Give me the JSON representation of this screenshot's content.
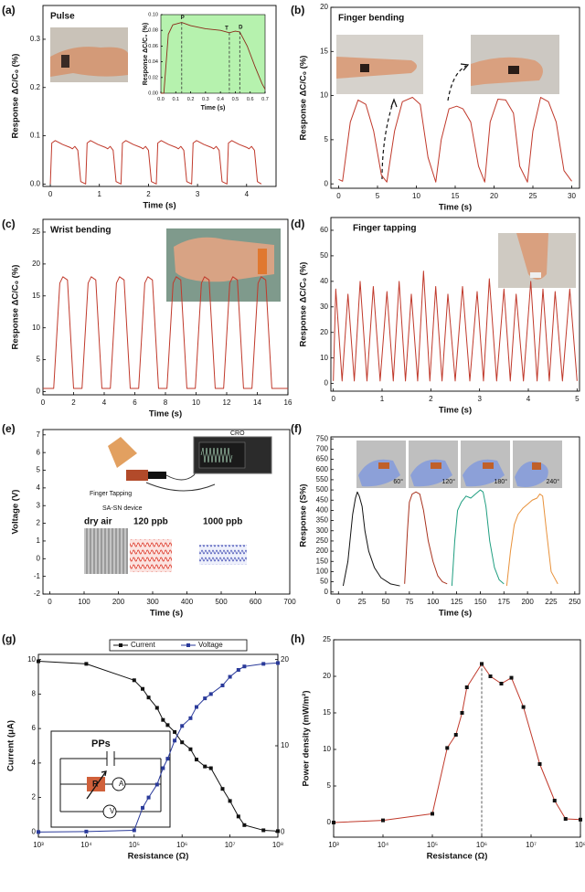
{
  "chart_data": [
    {
      "type": "line",
      "panel_label": "(a)",
      "title": "Pulse",
      "xlabel": "Time (s)",
      "ylabel": "Response ΔC/C₀ (%)",
      "xlim": [
        -0.15,
        4.6
      ],
      "ylim": [
        -0.005,
        0.37
      ],
      "xticks": [
        0,
        1,
        2,
        3,
        4
      ],
      "yticks": [
        {
          "value": 0,
          "label": "0.0"
        },
        0.1,
        0.2,
        0.3
      ],
      "series": [
        {
          "color": "#c0392b",
          "x": [
            0,
            0.03,
            0.1,
            0.25,
            0.4,
            0.45,
            0.5,
            0.56,
            0.62,
            0.72,
            0.75,
            0.82,
            0.97,
            1.12,
            1.17,
            1.22,
            1.28,
            1.34,
            1.44,
            1.47,
            1.54,
            1.69,
            1.84,
            1.89,
            1.94,
            2.0,
            2.06,
            2.16,
            2.19,
            2.26,
            2.41,
            2.56,
            2.61,
            2.66,
            2.72,
            2.78,
            2.88,
            2.91,
            2.98,
            3.13,
            3.28,
            3.33,
            3.38,
            3.44,
            3.5,
            3.6,
            3.63,
            3.7,
            3.85,
            4.0,
            4.05,
            4.1,
            4.16,
            4.22,
            4.3
          ],
          "values": [
            0,
            0.085,
            0.09,
            0.082,
            0.076,
            0.073,
            0.078,
            0.07,
            0.005,
            0,
            0.085,
            0.09,
            0.082,
            0.076,
            0.073,
            0.078,
            0.07,
            0.005,
            0,
            0.085,
            0.09,
            0.082,
            0.076,
            0.073,
            0.078,
            0.07,
            0.005,
            0,
            0.085,
            0.09,
            0.082,
            0.076,
            0.073,
            0.078,
            0.07,
            0.005,
            0,
            0.085,
            0.09,
            0.082,
            0.076,
            0.073,
            0.078,
            0.07,
            0.005,
            0,
            0.085,
            0.09,
            0.082,
            0.076,
            0.073,
            0.078,
            0.07,
            0.005,
            0
          ]
        }
      ],
      "inset": {
        "type": "line",
        "xlabel": "Time (s)",
        "ylabel": "Response ΔC/C₀ (%)",
        "background": "#b6f2ae",
        "xlim": [
          0,
          0.7
        ],
        "ylim": [
          0,
          0.1
        ],
        "xticks": [
          {
            "value": 0,
            "label": "0.0"
          },
          0.1,
          0.2,
          0.3,
          0.4,
          0.5,
          0.6,
          0.7
        ],
        "yticks": [
          {
            "value": 0,
            "label": "0.00"
          },
          0.02,
          0.04,
          0.06,
          0.08,
          {
            "value": 0.1,
            "label": "0.10"
          }
        ],
        "annotations": [
          "P",
          "T",
          "D"
        ],
        "series": [
          {
            "color": "#8b2a1a",
            "x": [
              0,
              0.02,
              0.05,
              0.08,
              0.14,
              0.2,
              0.3,
              0.4,
              0.46,
              0.5,
              0.53,
              0.58,
              0.63,
              0.68,
              0.7
            ],
            "values": [
              0,
              0,
              0.075,
              0.087,
              0.09,
              0.086,
              0.082,
              0.08,
              0.077,
              0.079,
              0.078,
              0.06,
              0.035,
              0.012,
              0.005
            ]
          }
        ]
      }
    },
    {
      "type": "line",
      "panel_label": "(b)",
      "title": "Finger bending",
      "xlabel": "Time (s)",
      "ylabel": "Response ΔC/C₀ (%)",
      "xlim": [
        -1,
        31
      ],
      "ylim": [
        -0.5,
        20
      ],
      "xticks": [
        0,
        5,
        10,
        15,
        20,
        25,
        30
      ],
      "yticks": [
        0,
        5,
        10,
        15,
        20
      ],
      "series": [
        {
          "color": "#c0392b",
          "x": [
            0,
            0.5,
            1.5,
            2.5,
            3.5,
            4.5,
            5.5,
            6.2,
            7.2,
            8.2,
            9.5,
            10.5,
            11.5,
            12.5,
            13.2,
            14.2,
            15.2,
            16,
            17,
            18,
            18.8,
            19.5,
            20.5,
            21.5,
            22.5,
            23.3,
            24.3,
            25,
            26,
            27,
            28,
            29,
            30
          ],
          "values": [
            0.5,
            0.3,
            7,
            9.5,
            9,
            6,
            1,
            0.2,
            6,
            9.3,
            9.8,
            9,
            3,
            0.2,
            5,
            8.5,
            8.8,
            8.5,
            7,
            2,
            0.2,
            7,
            9.6,
            9.5,
            8,
            2,
            0.2,
            6,
            9.8,
            9.3,
            7,
            1.5,
            0.3
          ]
        }
      ]
    },
    {
      "type": "line",
      "panel_label": "(c)",
      "title": "Wrist bending",
      "xlabel": "Time (s)",
      "ylabel": "Response ΔC/C₀ (%)",
      "xlim": [
        0,
        16
      ],
      "ylim": [
        -0.5,
        27
      ],
      "xticks": [
        0,
        2,
        4,
        6,
        8,
        10,
        12,
        14,
        16
      ],
      "yticks": [
        0,
        5,
        10,
        15,
        20,
        25
      ],
      "series": [
        {
          "color": "#c0392b",
          "x": [
            0,
            0.7,
            1.1,
            1.3,
            1.6,
            2.0,
            2.55,
            2.95,
            3.15,
            3.45,
            3.85,
            4.4,
            4.8,
            5.0,
            5.3,
            5.7,
            6.25,
            6.65,
            6.85,
            7.15,
            7.55,
            8.1,
            8.5,
            8.7,
            9.0,
            9.4,
            9.95,
            10.35,
            10.55,
            10.85,
            11.25,
            11.8,
            12.2,
            12.4,
            12.7,
            13.1,
            13.65,
            14.05,
            14.25,
            14.55,
            14.95,
            16
          ],
          "values": [
            0.5,
            0.5,
            17,
            18,
            17.5,
            0.5,
            0.5,
            17,
            18,
            17.5,
            0.5,
            0.5,
            17,
            18,
            17.5,
            0.5,
            0.5,
            17,
            18,
            17.5,
            0.5,
            0.5,
            17,
            18,
            17.5,
            0.5,
            0.5,
            17,
            18,
            17.5,
            0.5,
            0.5,
            17,
            18,
            17.5,
            0.5,
            0.5,
            17,
            18,
            17.5,
            0.5,
            0.5
          ]
        }
      ]
    },
    {
      "type": "line",
      "panel_label": "(d)",
      "title": "Finger tapping",
      "xlabel": "Time (s)",
      "ylabel": "Response ΔC/C₀ (%)",
      "xlim": [
        -0.05,
        5.05
      ],
      "ylim": [
        -3,
        65
      ],
      "xticks": [
        0,
        1,
        2,
        3,
        4,
        5
      ],
      "yticks": [
        0,
        10,
        20,
        30,
        40,
        50,
        60
      ],
      "series": [
        {
          "color": "#c0392b",
          "x": [
            0,
            0.05,
            0.18,
            0.3,
            0.43,
            0.55,
            0.69,
            0.82,
            0.96,
            1.1,
            1.23,
            1.35,
            1.48,
            1.6,
            1.73,
            1.85,
            1.98,
            2.1,
            2.23,
            2.35,
            2.5,
            2.65,
            2.8,
            2.95,
            3.08,
            3.2,
            3.35,
            3.5,
            3.63,
            3.75,
            3.9,
            4.05,
            4.18,
            4.3,
            4.43,
            4.55,
            4.7,
            4.85,
            5.0
          ],
          "values": [
            1,
            37,
            1,
            35,
            1,
            40,
            1,
            38,
            1,
            36,
            1,
            40,
            1,
            35,
            1,
            44,
            1,
            38,
            1,
            35,
            1,
            38,
            1,
            36,
            1,
            41,
            1,
            37,
            1,
            35,
            1,
            40,
            1,
            37,
            1,
            36,
            1,
            37,
            1
          ]
        }
      ]
    },
    {
      "type": "line",
      "panel_label": "(e)",
      "xlabel": "Time (s)",
      "ylabel": "Voltage (V)",
      "xlim": [
        -20,
        700
      ],
      "ylim": [
        -2,
        7.3
      ],
      "xticks": [
        0,
        100,
        200,
        300,
        400,
        500,
        600,
        700
      ],
      "yticks": [
        -2,
        -1,
        0,
        1,
        2,
        3,
        4,
        5,
        6,
        7
      ],
      "annotations": [
        "Finger Tapping",
        "SA-SN device",
        "CRO",
        "dry air",
        "120 ppb",
        "1000 ppb"
      ],
      "series": []
    },
    {
      "type": "line",
      "panel_label": "(f)",
      "xlabel": "Time (s)",
      "ylabel": "Response (S%)",
      "xlim": [
        -8,
        255
      ],
      "ylim": [
        -10,
        760
      ],
      "xticks": [
        0,
        25,
        50,
        75,
        100,
        125,
        150,
        175,
        200,
        225,
        250
      ],
      "yticks": [
        0,
        50,
        100,
        150,
        200,
        250,
        300,
        350,
        400,
        450,
        500,
        550,
        600,
        650,
        700,
        750
      ],
      "annotations": [
        "60°",
        "120°",
        "180°",
        "240°"
      ],
      "series": [
        {
          "color": "#111111",
          "x": [
            5,
            10,
            15,
            18,
            20,
            22,
            25,
            28,
            32,
            38,
            45,
            55,
            65
          ],
          "values": [
            30,
            150,
            380,
            460,
            490,
            470,
            420,
            300,
            200,
            120,
            70,
            40,
            30
          ]
        },
        {
          "color": "#a8321e",
          "x": [
            70,
            73,
            75,
            78,
            82,
            86,
            90,
            95,
            100,
            105,
            110,
            115
          ],
          "values": [
            40,
            300,
            440,
            480,
            490,
            480,
            400,
            250,
            150,
            80,
            50,
            40
          ]
        },
        {
          "color": "#1f9e80",
          "x": [
            120,
            123,
            126,
            130,
            135,
            140,
            145,
            150,
            153,
            156,
            160,
            165,
            170,
            175
          ],
          "values": [
            30,
            250,
            400,
            440,
            470,
            460,
            480,
            500,
            490,
            420,
            250,
            120,
            60,
            40
          ]
        },
        {
          "color": "#e8913a",
          "x": [
            178,
            182,
            186,
            190,
            195,
            200,
            205,
            210,
            213,
            216,
            220,
            225,
            232
          ],
          "values": [
            30,
            200,
            330,
            380,
            410,
            430,
            450,
            460,
            480,
            470,
            300,
            100,
            40
          ]
        }
      ]
    },
    {
      "type": "line",
      "panel_label": "(g)",
      "xlabel": "Resistance (Ω)",
      "ylabel": "Current (μA)",
      "xscale": "log",
      "xlim": [
        1000,
        100000000
      ],
      "ylim": [
        -0.3,
        10.3
      ],
      "y2lim": [
        -0.6,
        20.6
      ],
      "xticks": [
        {
          "value": 1000,
          "label": "10³"
        },
        {
          "value": 10000,
          "label": "10⁴"
        },
        {
          "value": 100000,
          "label": "10⁵"
        },
        {
          "value": 1000000,
          "label": "10⁶"
        },
        {
          "value": 10000000,
          "label": "10⁷"
        },
        {
          "value": 100000000,
          "label": "10⁸"
        }
      ],
      "yticks": [
        0,
        2,
        4,
        6,
        8,
        10
      ],
      "y2ticks": [
        0,
        10,
        20
      ],
      "markers": "square",
      "legend": true,
      "annotations": [
        "PPs",
        "R",
        "A",
        "V"
      ],
      "series": [
        {
          "name": "Current",
          "color": "#111111",
          "x": [
            1000,
            10000,
            100000,
            150000,
            200000,
            300000,
            400000,
            500000,
            700000,
            1000000,
            1500000,
            2000000,
            3000000,
            4000000,
            7000000,
            10000000,
            15000000,
            20000000,
            50000000,
            100000000
          ],
          "values": [
            9.9,
            9.75,
            8.8,
            8.3,
            7.8,
            7.2,
            6.5,
            6.2,
            5.8,
            5.2,
            4.8,
            4.2,
            3.8,
            3.7,
            2.5,
            1.8,
            0.9,
            0.4,
            0.1,
            0.05
          ]
        },
        {
          "name": "Voltage",
          "color": "#2a3a9a",
          "axis": "y2",
          "x": [
            1000,
            10000,
            100000,
            150000,
            200000,
            300000,
            400000,
            500000,
            700000,
            1000000,
            1500000,
            2000000,
            3000000,
            4000000,
            7000000,
            10000000,
            15000000,
            20000000,
            50000000,
            100000000
          ],
          "values": [
            0,
            0.05,
            0.2,
            2.8,
            4,
            5.5,
            7.4,
            8.5,
            10.6,
            12.3,
            13.2,
            14.5,
            15.5,
            16,
            17,
            18,
            18.8,
            19.2,
            19.5,
            19.6
          ]
        }
      ]
    },
    {
      "type": "line",
      "panel_label": "(h)",
      "xlabel": "Resistance (Ω)",
      "ylabel": "Power density (mW/m²)",
      "xscale": "log",
      "xlim": [
        1000,
        100000000
      ],
      "ylim": [
        -2,
        25
      ],
      "xticks": [
        {
          "value": 1000,
          "label": "10³"
        },
        {
          "value": 10000,
          "label": "10⁴"
        },
        {
          "value": 100000,
          "label": "10⁵"
        },
        {
          "value": 1000000,
          "label": "10⁶"
        },
        {
          "value": 10000000,
          "label": "10⁷"
        },
        {
          "value": 100000000,
          "label": "10⁸"
        }
      ],
      "yticks": [
        0,
        5,
        10,
        15,
        20,
        25
      ],
      "markers": "square",
      "series": [
        {
          "color": "#c0392b",
          "marker_color": "#111111",
          "x": [
            1000,
            10000,
            100000,
            200000,
            300000,
            400000,
            500000,
            1000000,
            1500000,
            2500000,
            4000000,
            7000000,
            15000000,
            30000000,
            50000000,
            100000000
          ],
          "values": [
            0,
            0.3,
            1.2,
            10.2,
            12,
            15,
            18.5,
            21.7,
            20,
            19,
            19.8,
            15.8,
            8,
            3,
            0.5,
            0.4
          ]
        }
      ]
    }
  ]
}
